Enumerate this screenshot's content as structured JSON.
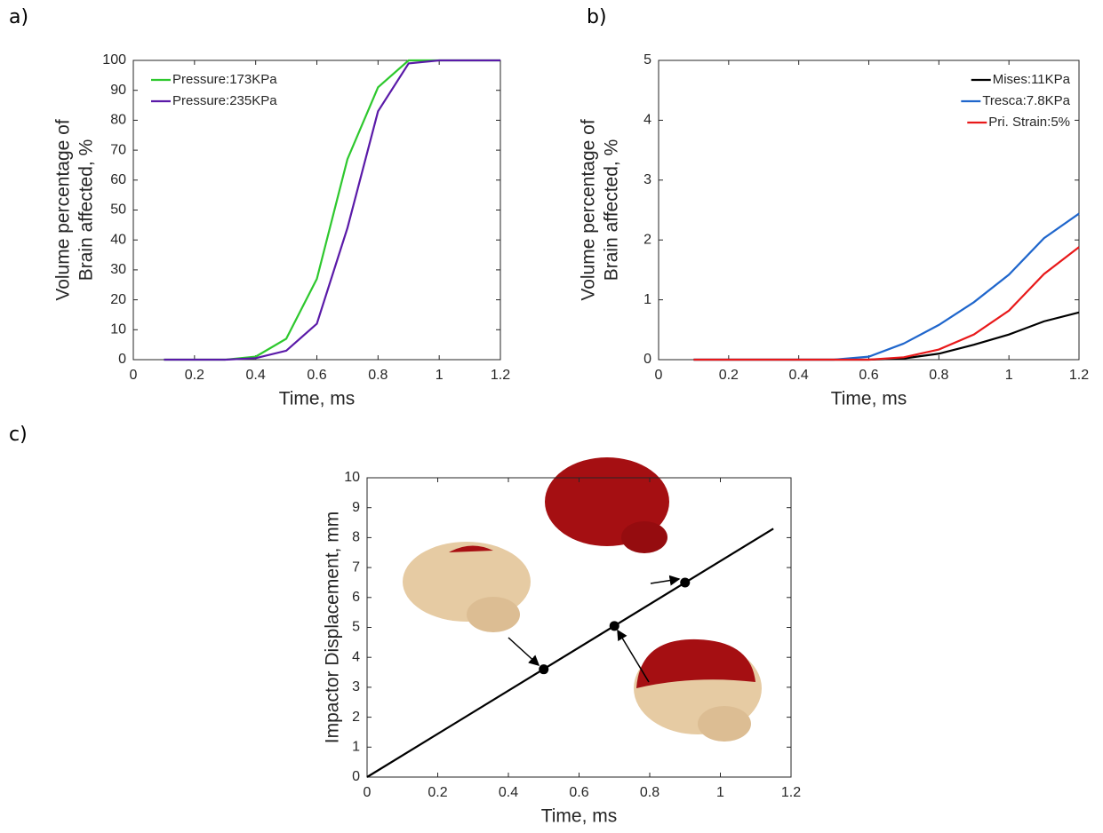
{
  "chart_data": [
    {
      "type": "line",
      "panel_label": "a)",
      "xlabel": "Time, ms",
      "ylabel": [
        "Volume percentage of",
        "Brain affected, %"
      ],
      "x": [
        0.1,
        0.2,
        0.3,
        0.4,
        0.5,
        0.6,
        0.7,
        0.8,
        0.9,
        1.0,
        1.1,
        1.2
      ],
      "series": [
        {
          "name": "Pressure:173KPa",
          "color": "#2ec82e",
          "values": [
            0,
            0,
            0,
            1,
            7,
            27,
            67,
            91,
            100,
            100,
            100,
            100
          ]
        },
        {
          "name": "Pressure:235KPa",
          "color": "#5a1aa8",
          "values": [
            0,
            0,
            0,
            0.5,
            3,
            12,
            44,
            83,
            99,
            100,
            100,
            100
          ]
        }
      ],
      "xlim": [
        0,
        1.2
      ],
      "xticks": [
        0,
        0.2,
        0.4,
        0.6,
        0.8,
        1,
        1.2
      ],
      "ylim": [
        0,
        100
      ],
      "yticks": [
        0,
        10,
        20,
        30,
        40,
        50,
        60,
        70,
        80,
        90,
        100
      ],
      "grid": false,
      "legend": "upper left"
    },
    {
      "type": "line",
      "panel_label": "b)",
      "xlabel": "Time, ms",
      "ylabel": [
        "Volume percentage of",
        "Brain affected, %"
      ],
      "x": [
        0.1,
        0.2,
        0.3,
        0.4,
        0.5,
        0.6,
        0.7,
        0.8,
        0.9,
        1.0,
        1.1,
        1.2
      ],
      "series": [
        {
          "name": "Mises:11KPa",
          "color": "#000000",
          "values": [
            0,
            0,
            0,
            0,
            0,
            0,
            0.02,
            0.1,
            0.25,
            0.42,
            0.64,
            0.79
          ]
        },
        {
          "name": "Tresca:7.8KPa",
          "color": "#1f66cc",
          "values": [
            0,
            0,
            0,
            0,
            0,
            0.05,
            0.27,
            0.58,
            0.96,
            1.42,
            2.03,
            2.44
          ]
        },
        {
          "name": "Pri. Strain:5%",
          "color": "#e8191a",
          "values": [
            0,
            0,
            0,
            0,
            0,
            0,
            0.04,
            0.17,
            0.42,
            0.82,
            1.43,
            1.88
          ]
        }
      ],
      "xlim": [
        0,
        1.2
      ],
      "xticks": [
        0,
        0.2,
        0.4,
        0.6,
        0.8,
        1,
        1.2
      ],
      "ylim": [
        0,
        5
      ],
      "yticks": [
        0,
        1,
        2,
        3,
        4,
        5
      ],
      "grid": false,
      "legend": "upper right"
    },
    {
      "type": "line",
      "panel_label": "c)",
      "xlabel": "Time, ms",
      "ylabel": "Impactor Displacement, mm",
      "series": [
        {
          "color": "#000000",
          "x": [
            0,
            1.15
          ],
          "values": [
            0,
            8.3
          ]
        },
        {
          "color": "#000000",
          "x": [
            0.5,
            0.7,
            0.9
          ],
          "values": [
            3.6,
            5.05,
            6.5
          ],
          "marker": true,
          "line": false
        }
      ],
      "xlim": [
        0,
        1.2
      ],
      "xticks": [
        0,
        0.2,
        0.4,
        0.6,
        0.8,
        1,
        1.2
      ],
      "ylim": [
        0,
        10
      ],
      "yticks": [
        0,
        1,
        2,
        3,
        4,
        5,
        6,
        7,
        8,
        9,
        10
      ],
      "grid": false
    }
  ]
}
